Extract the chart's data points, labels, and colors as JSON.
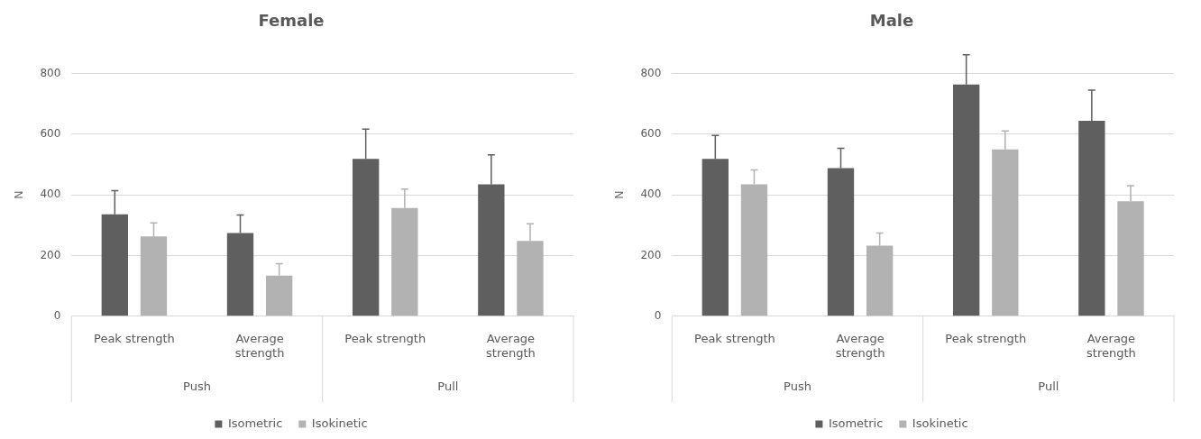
{
  "chart_data": [
    {
      "type": "bar",
      "title": "Female",
      "ylabel": "N",
      "categories": [
        "Peak strength",
        "Average strength",
        "Peak strength",
        "Average strength"
      ],
      "annotations": [
        "Push",
        "Pull"
      ],
      "ylim": [
        0,
        800
      ],
      "yticks": [
        0,
        200,
        400,
        600,
        800
      ],
      "grid": "y",
      "legend": "bottom",
      "series": [
        {
          "name": "Isometric",
          "color": "#5f5f5f",
          "values": [
            336,
            274,
            519,
            435
          ],
          "errors": [
            [
              336,
              414
            ],
            [
              274,
              334
            ],
            [
              519,
              617
            ],
            [
              435,
              532
            ]
          ]
        },
        {
          "name": "Isokinetic",
          "color": "#b2b2b2",
          "values": [
            263,
            134,
            357,
            248
          ],
          "errors": [
            [
              263,
              308
            ],
            [
              134,
              173
            ],
            [
              357,
              419
            ],
            [
              248,
              305
            ]
          ]
        }
      ]
    },
    {
      "type": "bar",
      "title": "Male",
      "ylabel": "N",
      "categories": [
        "Peak strength",
        "Average strength",
        "Peak strength",
        "Average strength"
      ],
      "annotations": [
        "Push",
        "Pull"
      ],
      "ylim": [
        0,
        800
      ],
      "yticks": [
        0,
        200,
        400,
        600,
        800
      ],
      "grid": "y",
      "legend": "bottom",
      "series": [
        {
          "name": "Isometric",
          "color": "#5f5f5f",
          "values": [
            519,
            488,
            764,
            644
          ],
          "errors": [
            [
              519,
              596
            ],
            [
              488,
              554
            ],
            [
              764,
              862
            ],
            [
              644,
              745
            ]
          ]
        },
        {
          "name": "Isokinetic",
          "color": "#b2b2b2",
          "values": [
            435,
            233,
            550,
            379
          ],
          "errors": [
            [
              435,
              482
            ],
            [
              233,
              274
            ],
            [
              550,
              611
            ],
            [
              379,
              430
            ]
          ]
        }
      ]
    }
  ]
}
